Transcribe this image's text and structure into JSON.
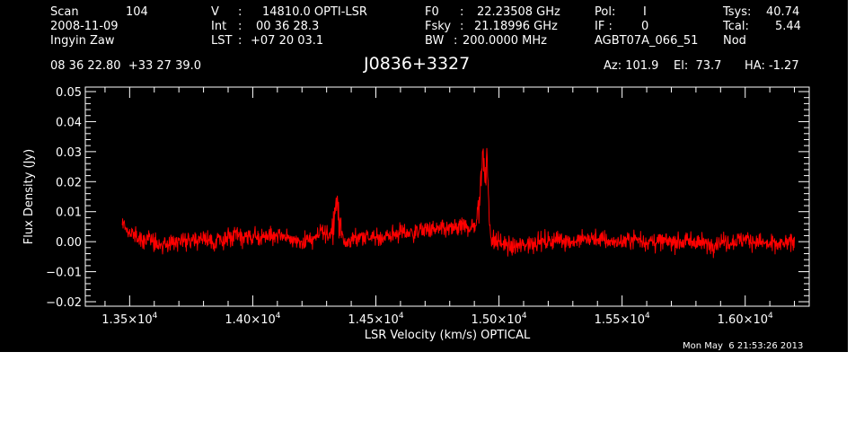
{
  "header": {
    "scan_label": "Scan",
    "scan_value": "104",
    "date": "2008-11-09",
    "observer": "Ingyin Zaw",
    "v_label": "V",
    "v_sep": ":",
    "v_value": "14810.0 OPTI-LSR",
    "int_label": "Int",
    "int_sep": ":",
    "int_value": "00 36 28.3",
    "lst_label": "LST",
    "lst_sep": ":",
    "lst_value": "+07 20 03.1",
    "f0_label": "F0",
    "f0_sep": ":",
    "f0_value": "22.23508 GHz",
    "fsky_label": "Fsky",
    "fsky_sep": ":",
    "fsky_value": "21.18996 GHz",
    "bw_label": "BW",
    "bw_sep": ":",
    "bw_value": "200.0000 MHz",
    "pol_label": "Pol:",
    "pol_value": "I",
    "if_label": "IF :",
    "if_value": "0",
    "project": "AGBT07A_066_51",
    "tsys_label": "Tsys:",
    "tsys_value": "40.74",
    "tcal_label": "Tcal:",
    "tcal_value": "5.44",
    "mode": "Nod",
    "coords": "08 36 22.80  +33 27 39.0",
    "source": "J0836+3327",
    "az": "Az: 101.9",
    "el": "El:  73.7",
    "ha": "HA: -1.27"
  },
  "footer": {
    "timestamp": "Mon May  6 21:53:26 2013"
  },
  "colors": {
    "background": "#000000",
    "axes": "#ffffff",
    "series": "#ff0000"
  },
  "chart_data": {
    "type": "line",
    "xlabel": "LSR Velocity (km/s) OPTICAL",
    "ylabel": "Flux Density (Jy)",
    "xlim": [
      13320,
      16260
    ],
    "ylim": [
      -0.0215,
      0.0515
    ],
    "xticks": [
      13500,
      14000,
      14500,
      15000,
      15500,
      16000
    ],
    "xtick_labels": [
      {
        "mantissa": "1.35",
        "times": "×10",
        "exp": "4"
      },
      {
        "mantissa": "1.40",
        "times": "×10",
        "exp": "4"
      },
      {
        "mantissa": "1.45",
        "times": "×10",
        "exp": "4"
      },
      {
        "mantissa": "1.50",
        "times": "×10",
        "exp": "4"
      },
      {
        "mantissa": "1.55",
        "times": "×10",
        "exp": "4"
      },
      {
        "mantissa": "1.60",
        "times": "×10",
        "exp": "4"
      }
    ],
    "yticks": [
      -0.02,
      -0.01,
      0.0,
      0.01,
      0.02,
      0.03,
      0.04,
      0.05
    ],
    "ytick_labels": [
      "−0.02",
      "−0.01",
      "0.00",
      "0.01",
      "0.02",
      "0.03",
      "0.04",
      "0.05"
    ],
    "x_minor_step": 100,
    "y_minor_step": 0.002,
    "series": [
      {
        "x": [
          13470,
          13500,
          13550,
          13600,
          13650,
          13700,
          13750,
          13800,
          13850,
          13900,
          13950,
          14000,
          14050,
          14100,
          14150,
          14200,
          14250,
          14280,
          14300,
          14320,
          14330,
          14340,
          14350,
          14360,
          14370,
          14380,
          14400,
          14450,
          14500,
          14550,
          14600,
          14650,
          14700,
          14750,
          14800,
          14850,
          14880,
          14900,
          14910,
          14920,
          14930,
          14935,
          14940,
          14945,
          14950,
          14955,
          14960,
          14965,
          14970,
          14980,
          15000,
          15050,
          15100,
          15150,
          15200,
          15250,
          15300,
          15350,
          15400,
          15450,
          15500,
          15550,
          15600,
          15650,
          15700,
          15750,
          15800,
          15850,
          15900,
          15950,
          16000,
          16050,
          16100,
          16150,
          16200
        ],
        "y": [
          0.006,
          0.003,
          0.001,
          0.0,
          -0.001,
          0.0,
          0.001,
          0.001,
          0.0,
          0.001,
          0.002,
          0.001,
          0.002,
          0.002,
          0.001,
          0.0,
          0.001,
          0.003,
          0.002,
          0.004,
          0.008,
          0.014,
          0.009,
          0.003,
          0.0,
          -0.001,
          0.001,
          0.002,
          0.001,
          0.002,
          0.003,
          0.003,
          0.004,
          0.004,
          0.004,
          0.005,
          0.005,
          0.005,
          0.007,
          0.012,
          0.024,
          0.034,
          0.026,
          0.018,
          0.03,
          0.02,
          0.009,
          0.004,
          0.001,
          0.0,
          0.0,
          -0.002,
          -0.001,
          0.0,
          0.0,
          0.001,
          0.0,
          0.001,
          0.001,
          0.0,
          0.0,
          0.001,
          0.0,
          0.0,
          0.0,
          0.0,
          0.0,
          -0.001,
          0.0,
          0.0,
          0.001,
          0.0,
          -0.001,
          -0.001,
          0.0
        ]
      }
    ]
  }
}
